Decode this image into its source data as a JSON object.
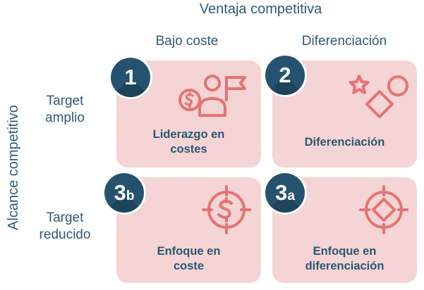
{
  "title": "Ventaja competitiva",
  "side_title": "Alcance competitivo",
  "columns": [
    "Bajo coste",
    "Diferenciación"
  ],
  "rows": [
    {
      "line1": "Target",
      "line2": "amplio"
    },
    {
      "line1": "Target",
      "line2": "reducido"
    }
  ],
  "cells": [
    {
      "badge": "1",
      "badge_sub": "",
      "line1": "Liderazgo en",
      "line2": "costes",
      "icon": "cost-leader-icon"
    },
    {
      "badge": "2",
      "badge_sub": "",
      "line1": "Diferenciación",
      "line2": "",
      "icon": "shapes-icon"
    },
    {
      "badge": "3",
      "badge_sub": "b",
      "line1": "Enfoque en",
      "line2": "coste",
      "icon": "target-dollar-icon"
    },
    {
      "badge": "3",
      "badge_sub": "a",
      "line1": "Enfoque en",
      "line2": "diferenciación",
      "icon": "target-diamond-icon"
    }
  ],
  "colors": {
    "dark_blue": "#25536f",
    "text_blue": "#2c5872",
    "card_pink": "#f4d4d4",
    "icon_red": "#e57373"
  }
}
